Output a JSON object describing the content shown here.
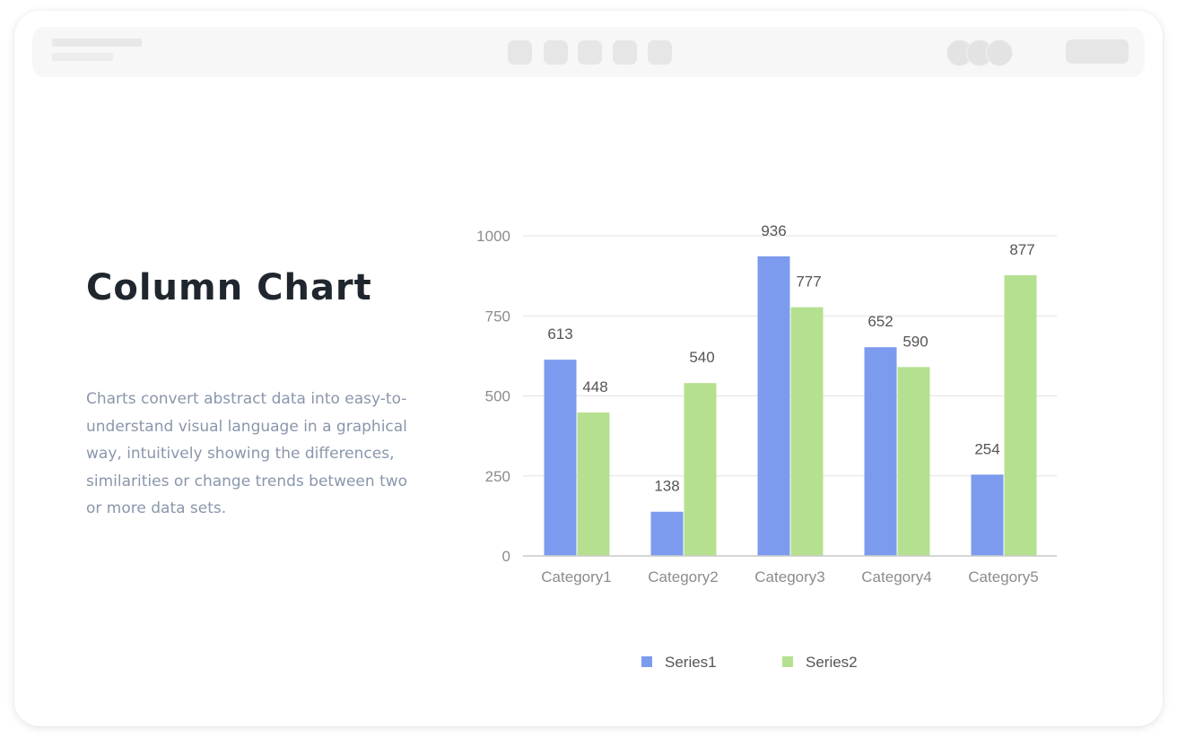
{
  "page": {
    "title": "Column Chart",
    "description": "Charts convert abstract data into easy-to-understand visual language in a graphical way, intuitively showing the differences, similarities or change trends between two or more data sets."
  },
  "chart_data": {
    "type": "bar",
    "categories": [
      "Category1",
      "Category2",
      "Category3",
      "Category4",
      "Category5"
    ],
    "series": [
      {
        "name": "Series1",
        "color": "#7c9bee",
        "values": [
          613,
          138,
          936,
          652,
          254
        ]
      },
      {
        "name": "Series2",
        "color": "#b5e08f",
        "values": [
          448,
          540,
          777,
          590,
          877
        ]
      }
    ],
    "ylim": [
      0,
      1000
    ],
    "yticks": [
      0,
      250,
      500,
      750,
      1000
    ],
    "grid": true,
    "data_labels": true,
    "legend_position": "bottom"
  }
}
